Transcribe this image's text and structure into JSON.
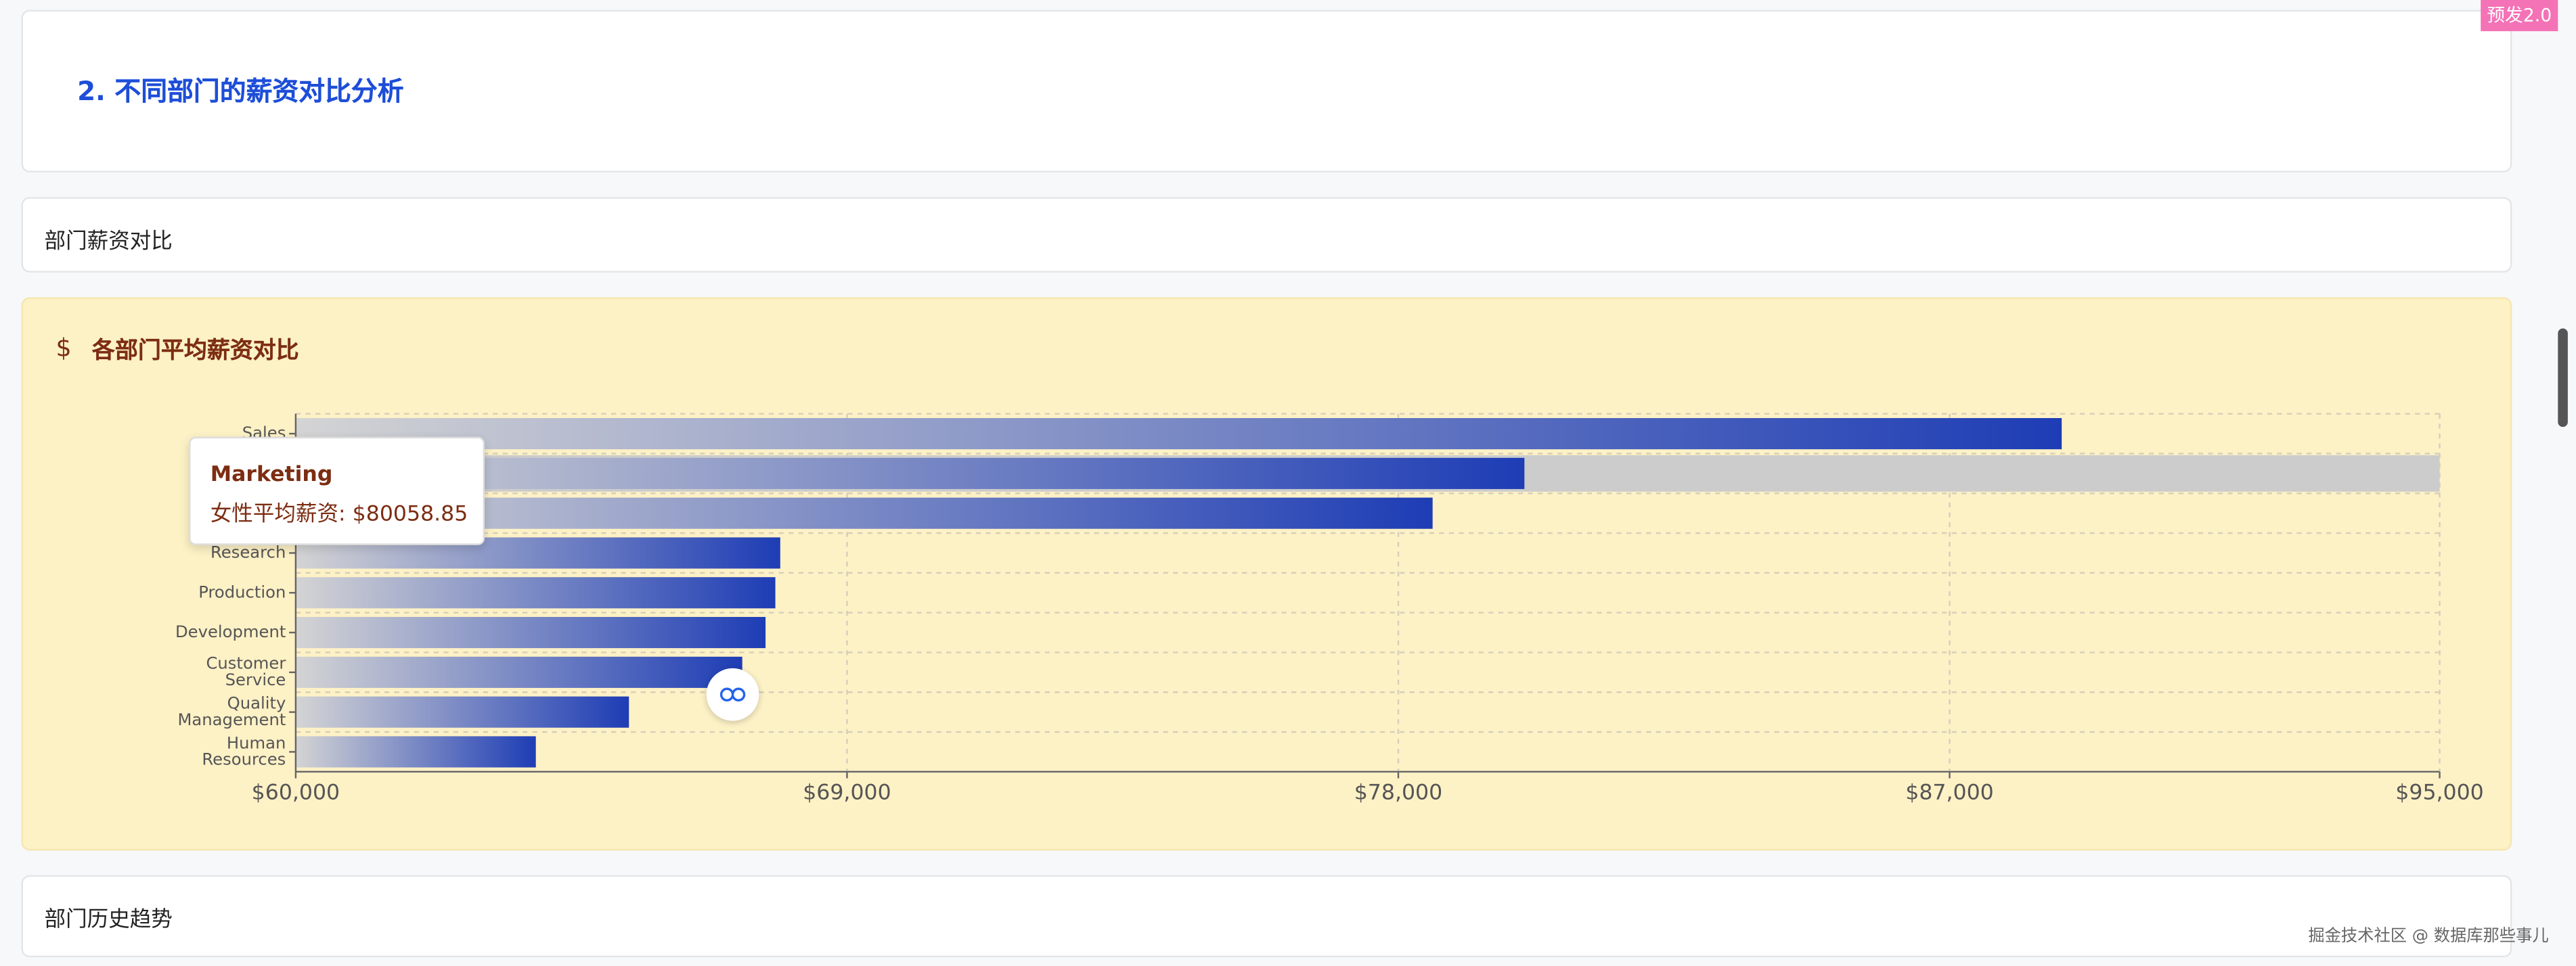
{
  "badge": "预发2.0",
  "section": {
    "title": "2. 不同部门的薪资对比分析"
  },
  "tab": {
    "label": "部门薪资对比"
  },
  "card": {
    "icon": "$",
    "title": "各部门平均薪资对比"
  },
  "chart_data": {
    "type": "bar",
    "orientation": "horizontal",
    "categories": [
      "Sales",
      null,
      null,
      "Research",
      "Production",
      "Development",
      "Customer Service",
      "Quality Management",
      "Human Resources"
    ],
    "values": [
      88830,
      80058.85,
      78560,
      67910,
      67830,
      67670,
      67290,
      65440,
      63920
    ],
    "color_start": "#d4d4d4",
    "color_end": "#1e3db5",
    "xlim": [
      60000,
      95000
    ],
    "xticks": [
      {
        "value": 60000,
        "label": "$60,000"
      },
      {
        "value": 69000,
        "label": "$69,000"
      },
      {
        "value": 78000,
        "label": "$78,000"
      },
      {
        "value": 87000,
        "label": "$87,000"
      },
      {
        "value": 95000,
        "label": "$95,000"
      }
    ],
    "grid": true,
    "tooltip": {
      "title": "Marketing",
      "label": "女性平均薪资: $80058.85"
    }
  },
  "next_tab": {
    "label": "部门历史趋势"
  },
  "watermark": "掘金技术社区 @ 数据库那些事儿"
}
